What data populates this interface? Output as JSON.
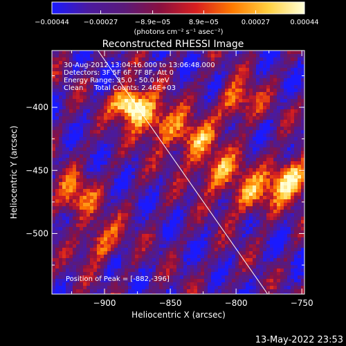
{
  "chart_data": {
    "type": "heatmap",
    "title": "Reconstructed RHESSI Image",
    "xlabel": "Heliocentric X (arcsec)",
    "ylabel": "Heliocentric Y (arcsec)",
    "xlim": [
      -940,
      -748
    ],
    "ylim": [
      -548,
      -355
    ],
    "x_ticks": [
      -900,
      -850,
      -800,
      -750
    ],
    "x_tick_labels": [
      "−900",
      "−850",
      "−800",
      "−750"
    ],
    "y_ticks": [
      -400,
      -450,
      -500
    ],
    "y_tick_labels": [
      "−400",
      "−450",
      "−500"
    ],
    "colorbar": {
      "min": -0.00044,
      "max": 0.00044,
      "ticks": [
        -0.00044,
        -0.00027,
        -8.9e-05,
        8.9e-05,
        0.00027,
        0.00044
      ],
      "tick_labels": [
        "−0.00044",
        "−0.00027",
        "−8.9e−05",
        "8.9e−05",
        "0.00027",
        "0.00044"
      ],
      "unit_label": "(photons cm⁻² s⁻¹ asec⁻²)",
      "colors": [
        "#1a1aff",
        "#4a1aa0",
        "#5a1a7a",
        "#8a1040",
        "#d81f1f",
        "#ff7a00",
        "#ffd040",
        "#ffffd8"
      ]
    },
    "annotations": {
      "time_range": "30-Aug-2012 13:04:16.000 to 13:06:48.000",
      "detectors": "Detectors: 3F 5F 6F 7F 8F, Att 0",
      "energy": "Energy Range: 35.0 - 50.0 keV",
      "clean": "Clean     Total Counts: 2.46E+03",
      "peak": "Position of Peak = [-882,-396]"
    },
    "peak": [
      -882,
      -396
    ],
    "limb_line": [
      [
        -905,
        -355
      ],
      [
        -776,
        -548
      ]
    ],
    "bright_features": [
      {
        "x": -882,
        "y": -396,
        "intensity": 1.0
      },
      {
        "x": -862,
        "y": -410,
        "intensity": 0.6
      },
      {
        "x": -835,
        "y": -425,
        "intensity": 0.55
      },
      {
        "x": -815,
        "y": -450,
        "intensity": 0.55
      },
      {
        "x": -790,
        "y": -470,
        "intensity": 0.5
      },
      {
        "x": -760,
        "y": -455,
        "intensity": 0.75
      },
      {
        "x": -925,
        "y": -470,
        "intensity": 0.5
      },
      {
        "x": -905,
        "y": -505,
        "intensity": 0.45
      },
      {
        "x": -800,
        "y": -395,
        "intensity": 0.5
      }
    ]
  },
  "footer": {
    "timestamp": "13-May-2022 23:53"
  }
}
